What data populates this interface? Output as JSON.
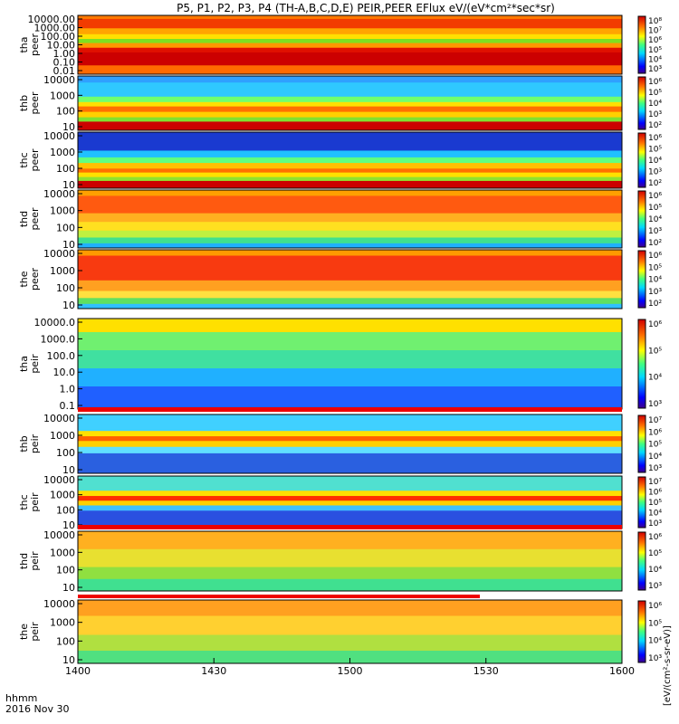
{
  "chart_data": {
    "type": "heatmap",
    "title": "P5, P1, P2, P3, P4 (TH-A,B,C,D,E) PEIR,PEER EFlux eV/(eV*cm²*sec*sr)",
    "x_ticks": [
      "1400",
      "1430",
      "1500",
      "1530",
      "1600"
    ],
    "x_corner_label": [
      "hhmm",
      "2016 Nov 30"
    ],
    "colorbar_label": "[eV/(cm²-s-sr-eV)]",
    "panels": [
      {
        "ylabel": [
          "tha",
          "peer"
        ],
        "yticks": [
          "10000.00",
          "1000.00",
          "100.00",
          "10.00",
          "1.00",
          "0.10",
          "0.01"
        ],
        "cbar_ticks": [
          "10⁸",
          "10⁷",
          "10⁶",
          "10⁵",
          "10⁴",
          "10³"
        ],
        "bands": [
          {
            "frac": [
              0.0,
              0.06
            ],
            "color": "#ff7a00"
          },
          {
            "frac": [
              0.06,
              0.22
            ],
            "color": "#f23c00"
          },
          {
            "frac": [
              0.22,
              0.32
            ],
            "color": "#ffa500"
          },
          {
            "frac": [
              0.32,
              0.4
            ],
            "color": "#ffe000"
          },
          {
            "frac": [
              0.4,
              0.47
            ],
            "color": "#7ee020"
          },
          {
            "frac": [
              0.47,
              0.55
            ],
            "color": "#ff9800"
          },
          {
            "frac": [
              0.55,
              0.63
            ],
            "color": "#e01000"
          },
          {
            "frac": [
              0.63,
              0.85
            ],
            "color": "#cc0000"
          },
          {
            "frac": [
              0.85,
              1.0
            ],
            "color": "#ff6a00"
          }
        ]
      },
      {
        "ylabel": [
          "thb",
          "peer"
        ],
        "yticks": [
          "10000",
          "1000",
          "100",
          "10"
        ],
        "cbar_ticks": [
          "10⁶",
          "10⁵",
          "10⁴",
          "10³",
          "10²"
        ],
        "bands": [
          {
            "frac": [
              0.0,
              0.12
            ],
            "color": "#2fa0ff"
          },
          {
            "frac": [
              0.12,
              0.38
            ],
            "color": "#2fc8ff"
          },
          {
            "frac": [
              0.38,
              0.48
            ],
            "color": "#70ff70"
          },
          {
            "frac": [
              0.48,
              0.56
            ],
            "color": "#ffe000"
          },
          {
            "frac": [
              0.56,
              0.66
            ],
            "color": "#ff7000"
          },
          {
            "frac": [
              0.66,
              0.76
            ],
            "color": "#ffd000"
          },
          {
            "frac": [
              0.76,
              0.84
            ],
            "color": "#80e030"
          },
          {
            "frac": [
              0.84,
              1.0
            ],
            "color": "#cc0000"
          }
        ]
      },
      {
        "ylabel": [
          "thc",
          "peer"
        ],
        "yticks": [
          "10000",
          "1000",
          "100",
          "10"
        ],
        "cbar_ticks": [
          "10⁶",
          "10⁵",
          "10⁴",
          "10³",
          "10²"
        ],
        "bands": [
          {
            "frac": [
              0.0,
              0.33
            ],
            "color": "#1a3ad0"
          },
          {
            "frac": [
              0.33,
              0.45
            ],
            "color": "#20c0ff"
          },
          {
            "frac": [
              0.45,
              0.55
            ],
            "color": "#60ff80"
          },
          {
            "frac": [
              0.55,
              0.65
            ],
            "color": "#ffc000"
          },
          {
            "frac": [
              0.65,
              0.72
            ],
            "color": "#ff7000"
          },
          {
            "frac": [
              0.72,
              0.8
            ],
            "color": "#ffe000"
          },
          {
            "frac": [
              0.8,
              0.87
            ],
            "color": "#90e030"
          },
          {
            "frac": [
              0.87,
              1.0
            ],
            "color": "#cc0000"
          }
        ]
      },
      {
        "ylabel": [
          "thd",
          "peer"
        ],
        "yticks": [
          "10000",
          "1000",
          "100",
          "10"
        ],
        "cbar_ticks": [
          "10⁶",
          "10⁵",
          "10⁴",
          "10³",
          "10²"
        ],
        "bands": [
          {
            "frac": [
              0.0,
              0.1
            ],
            "color": "#ffa000"
          },
          {
            "frac": [
              0.1,
              0.4
            ],
            "color": "#ff5a10"
          },
          {
            "frac": [
              0.4,
              0.55
            ],
            "color": "#ffb020"
          },
          {
            "frac": [
              0.55,
              0.7
            ],
            "color": "#ffe020"
          },
          {
            "frac": [
              0.7,
              0.82
            ],
            "color": "#c0f040"
          },
          {
            "frac": [
              0.82,
              0.92
            ],
            "color": "#40e090"
          },
          {
            "frac": [
              0.92,
              1.0
            ],
            "color": "#20b0ff"
          }
        ]
      },
      {
        "ylabel": [
          "the",
          "peer"
        ],
        "yticks": [
          "10000",
          "1000",
          "100",
          "10"
        ],
        "cbar_ticks": [
          "10⁶",
          "10⁵",
          "10⁴",
          "10³",
          "10²"
        ],
        "bands": [
          {
            "frac": [
              0.0,
              0.1
            ],
            "color": "#ff9a00"
          },
          {
            "frac": [
              0.1,
              0.52
            ],
            "color": "#f83a10"
          },
          {
            "frac": [
              0.52,
              0.7
            ],
            "color": "#ffa020"
          },
          {
            "frac": [
              0.7,
              0.82
            ],
            "color": "#ffe040"
          },
          {
            "frac": [
              0.82,
              0.92
            ],
            "color": "#60e060"
          },
          {
            "frac": [
              0.92,
              1.0
            ],
            "color": "#30c0ff"
          }
        ]
      },
      {
        "ylabel": [
          "tha",
          "peir"
        ],
        "yticks": [
          "10000.0",
          "1000.0",
          "100.0",
          "10.0",
          "1.0",
          "0.1"
        ],
        "cbar_ticks": [
          "10⁶",
          "10⁵",
          "10⁴",
          "10³"
        ],
        "bands": [
          {
            "frac": [
              0.0,
              0.15
            ],
            "color": "#ffe000"
          },
          {
            "frac": [
              0.15,
              0.35
            ],
            "color": "#70f070"
          },
          {
            "frac": [
              0.35,
              0.55
            ],
            "color": "#40e0a0"
          },
          {
            "frac": [
              0.55,
              0.75
            ],
            "color": "#20b0ff"
          },
          {
            "frac": [
              0.75,
              1.0
            ],
            "color": "#2060ff"
          }
        ]
      },
      {
        "ylabel": [
          "thb",
          "peir"
        ],
        "yticks": [
          "10000",
          "1000",
          "100",
          "10"
        ],
        "cbar_ticks": [
          "10⁷",
          "10⁶",
          "10⁵",
          "10⁴",
          "10³"
        ],
        "bands": [
          {
            "frac": [
              0.0,
              0.28
            ],
            "color": "#40d0ff"
          },
          {
            "frac": [
              0.28,
              0.37
            ],
            "color": "#ffe000"
          },
          {
            "frac": [
              0.37,
              0.45
            ],
            "color": "#ff6000"
          },
          {
            "frac": [
              0.45,
              0.55
            ],
            "color": "#ffd000"
          },
          {
            "frac": [
              0.55,
              0.66
            ],
            "color": "#60e0ff"
          },
          {
            "frac": [
              0.66,
              1.0
            ],
            "color": "#2a60e0"
          }
        ]
      },
      {
        "ylabel": [
          "thc",
          "peir"
        ],
        "yticks": [
          "10000",
          "1000",
          "100",
          "10"
        ],
        "cbar_ticks": [
          "10⁷",
          "10⁶",
          "10⁵",
          "10⁴",
          "10³"
        ],
        "bands": [
          {
            "frac": [
              0.0,
              0.28
            ],
            "color": "#50e0d0"
          },
          {
            "frac": [
              0.28,
              0.38
            ],
            "color": "#ffe000"
          },
          {
            "frac": [
              0.38,
              0.47
            ],
            "color": "#ff3000"
          },
          {
            "frac": [
              0.47,
              0.56
            ],
            "color": "#ffd000"
          },
          {
            "frac": [
              0.56,
              0.66
            ],
            "color": "#40c0ff"
          },
          {
            "frac": [
              0.66,
              1.0
            ],
            "color": "#2a50e0"
          }
        ]
      },
      {
        "ylabel": [
          "thd",
          "peir"
        ],
        "yticks": [
          "10000",
          "1000",
          "100",
          "10"
        ],
        "cbar_ticks": [
          "10⁶",
          "10⁵",
          "10⁴",
          "10³"
        ],
        "bands": [
          {
            "frac": [
              0.0,
              0.3
            ],
            "color": "#ffb020"
          },
          {
            "frac": [
              0.3,
              0.6
            ],
            "color": "#e8e030"
          },
          {
            "frac": [
              0.6,
              0.8
            ],
            "color": "#90e040"
          },
          {
            "frac": [
              0.8,
              1.0
            ],
            "color": "#40e090"
          }
        ]
      },
      {
        "ylabel": [
          "the",
          "peir"
        ],
        "yticks": [
          "10000",
          "1000",
          "100",
          "10"
        ],
        "cbar_ticks": [
          "10⁶",
          "10⁵",
          "10⁴",
          "10³"
        ],
        "bands": [
          {
            "frac": [
              0.0,
              0.25
            ],
            "color": "#ffa020"
          },
          {
            "frac": [
              0.25,
              0.55
            ],
            "color": "#ffd030"
          },
          {
            "frac": [
              0.55,
              0.8
            ],
            "color": "#b0e040"
          },
          {
            "frac": [
              0.8,
              1.0
            ],
            "color": "#50e080"
          }
        ]
      }
    ]
  },
  "colors": {
    "dropout_red": "#ee0000",
    "axis": "#000000"
  }
}
